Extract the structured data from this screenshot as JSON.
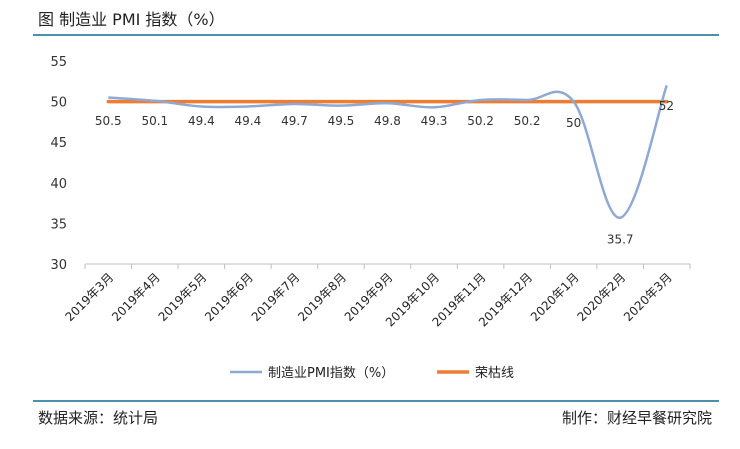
{
  "header": {
    "title": "图 制造业 PMI 指数（%）"
  },
  "footer": {
    "source": "数据来源：统计局",
    "credit": "制作：财经早餐研究院"
  },
  "colors": {
    "pmi_line": "#8fa9d4",
    "threshold_line": "#ed7d31",
    "rule": "#4e8fb0",
    "axis": "#bfbfbf"
  },
  "chart_data": {
    "type": "line",
    "categories": [
      "2019年3月",
      "2019年4月",
      "2019年5月",
      "2019年6月",
      "2019年7月",
      "2019年8月",
      "2019年9月",
      "2019年10月",
      "2019年11月",
      "2019年12月",
      "2020年1月",
      "2020年2月",
      "2020年3月"
    ],
    "series": [
      {
        "name": "制造业PMI指数（%）",
        "values": [
          50.5,
          50.1,
          49.4,
          49.4,
          49.7,
          49.5,
          49.8,
          49.3,
          50.2,
          50.2,
          50,
          35.7,
          52
        ],
        "smooth": true,
        "data_labels": true
      },
      {
        "name": "荣枯线",
        "values": [
          50,
          50,
          50,
          50,
          50,
          50,
          50,
          50,
          50,
          50,
          50,
          50,
          50
        ]
      }
    ],
    "ylim": [
      30,
      55
    ],
    "yticks": [
      30,
      35,
      40,
      45,
      50,
      55
    ],
    "grid": false,
    "legend": "bottom"
  }
}
